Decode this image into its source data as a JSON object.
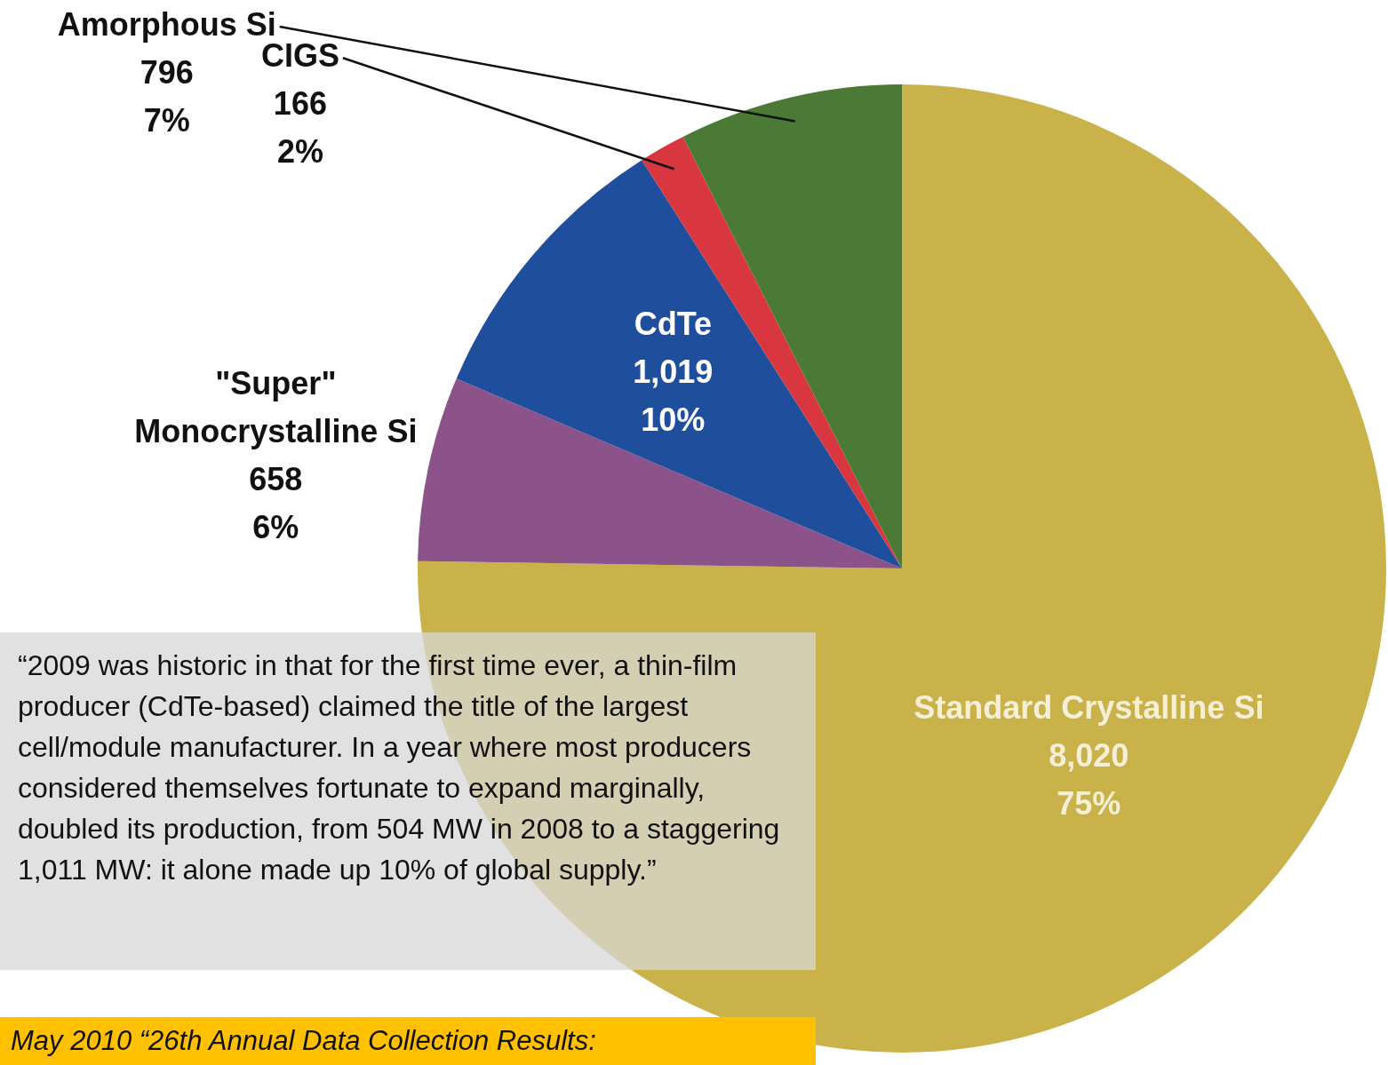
{
  "chart_data": {
    "type": "pie",
    "categories": [
      "Standard Crystalline Si",
      "\"Super\" Monocrystalline Si",
      "CdTe",
      "CIGS",
      "Amorphous Si"
    ],
    "values": [
      8020,
      658,
      1019,
      166,
      796
    ],
    "value_labels": [
      "8,020\n75%",
      "658\n6%",
      "1,019\n10%",
      "166\n2%",
      "796\n7%"
    ],
    "colors": [
      "#c9b24a",
      "#8b5389",
      "#1f4e9c",
      "#d9373f",
      "#4a7a35"
    ],
    "legend": false,
    "annotations": [
      "“2009 was historic in that for the first time ever, a thin-film producer (CdTe-based) claimed the title of the largest cell/module manufacturer. In a year where most producers considered themselves fortunate to expand marginally, doubled its production, from 504 MW in 2008 to a staggering 1,011 MW: it alone made up 10% of global supply.”",
      "May 2010 “26th Annual Data Collection Results:"
    ]
  }
}
